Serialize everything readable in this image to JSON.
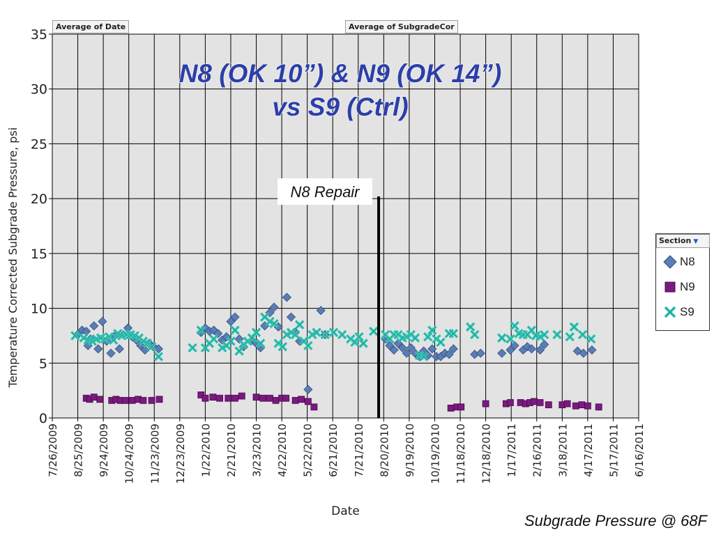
{
  "pivot_buttons": {
    "date_field": "Average of Date",
    "value_field": "Average of SubgradeCor"
  },
  "legend": {
    "title": "Section"
  },
  "annotation": "N8 Repair",
  "footer_note": "Subgrade Pressure @ 68F",
  "colors": {
    "N8": "#5b7db5",
    "N9": "#7a1a7e",
    "S9": "#3ccfbd",
    "plot_bg": "#e3e3e3"
  },
  "chart_data": {
    "type": "scatter",
    "title": "N8 (OK 10”) & N9 (OK 14”)",
    "subtitle": "vs S9 (Ctrl)",
    "xlabel": "Date",
    "ylabel": "Temperature Corrected Subgrade Pressure, psi",
    "x_scale": "date",
    "xlim": [
      "2009-07-26",
      "2011-06-16"
    ],
    "ylim": [
      0,
      35
    ],
    "yticks": [
      0,
      5,
      10,
      15,
      20,
      25,
      30,
      35
    ],
    "xtick_labels": [
      "7/26/2009",
      "8/25/2009",
      "9/24/2009",
      "10/24/2009",
      "11/23/2009",
      "12/23/2009",
      "1/22/2010",
      "2/21/2010",
      "3/23/2010",
      "4/22/2010",
      "5/22/2010",
      "6/21/2010",
      "7/21/2010",
      "8/20/2010",
      "9/19/2010",
      "10/19/2010",
      "11/18/2010",
      "12/18/2010",
      "1/17/2011",
      "2/16/2011",
      "3/18/2011",
      "4/17/2011",
      "5/17/2011",
      "6/16/2011"
    ],
    "grid": true,
    "legend_position": "right",
    "vline": {
      "x": "2010-08-14",
      "y_top": 20.2,
      "label": "N8 Repair"
    },
    "series": [
      {
        "name": "N8",
        "marker": "diamond",
        "points": [
          [
            "2009-08-25",
            7.6
          ],
          [
            "2009-08-30",
            8.0
          ],
          [
            "2009-09-04",
            7.9
          ],
          [
            "2009-09-06",
            6.6
          ],
          [
            "2009-09-09",
            7.2
          ],
          [
            "2009-09-13",
            8.4
          ],
          [
            "2009-09-18",
            6.3
          ],
          [
            "2009-09-23",
            8.8
          ],
          [
            "2009-09-28",
            7.0
          ],
          [
            "2009-10-03",
            5.9
          ],
          [
            "2009-10-08",
            7.5
          ],
          [
            "2009-10-13",
            6.3
          ],
          [
            "2009-10-18",
            7.6
          ],
          [
            "2009-10-23",
            8.2
          ],
          [
            "2009-10-28",
            7.4
          ],
          [
            "2009-11-02",
            7.1
          ],
          [
            "2009-11-07",
            6.6
          ],
          [
            "2009-11-12",
            6.2
          ],
          [
            "2009-11-17",
            6.8
          ],
          [
            "2009-11-22",
            6.5
          ],
          [
            "2009-11-28",
            6.3
          ],
          [
            "2010-01-17",
            7.8
          ],
          [
            "2010-01-22",
            8.2
          ],
          [
            "2010-01-27",
            7.9
          ],
          [
            "2010-02-01",
            8.0
          ],
          [
            "2010-02-06",
            7.7
          ],
          [
            "2010-02-11",
            7.1
          ],
          [
            "2010-02-16",
            7.4
          ],
          [
            "2010-02-21",
            8.8
          ],
          [
            "2010-02-26",
            9.2
          ],
          [
            "2010-03-03",
            7.2
          ],
          [
            "2010-03-08",
            6.5
          ],
          [
            "2010-03-18",
            7.1
          ],
          [
            "2010-03-23",
            6.8
          ],
          [
            "2010-03-28",
            6.4
          ],
          [
            "2010-04-02",
            8.4
          ],
          [
            "2010-04-08",
            9.6
          ],
          [
            "2010-04-13",
            10.1
          ],
          [
            "2010-04-18",
            8.3
          ],
          [
            "2010-04-28",
            11.0
          ],
          [
            "2010-05-03",
            9.2
          ],
          [
            "2010-05-08",
            7.8
          ],
          [
            "2010-05-13",
            7.0
          ],
          [
            "2010-05-23",
            2.6
          ],
          [
            "2010-06-07",
            9.8
          ],
          [
            "2010-06-12",
            7.6
          ],
          [
            "2010-08-22",
            7.2
          ],
          [
            "2010-08-27",
            6.6
          ],
          [
            "2010-09-01",
            6.2
          ],
          [
            "2010-09-06",
            6.8
          ],
          [
            "2010-09-11",
            6.4
          ],
          [
            "2010-09-16",
            5.9
          ],
          [
            "2010-09-21",
            6.4
          ],
          [
            "2010-09-26",
            5.9
          ],
          [
            "2010-10-01",
            5.6
          ],
          [
            "2010-10-06",
            6.1
          ],
          [
            "2010-10-11",
            5.7
          ],
          [
            "2010-10-16",
            6.3
          ],
          [
            "2010-10-21",
            5.6
          ],
          [
            "2010-10-26",
            5.6
          ],
          [
            "2010-10-31",
            5.9
          ],
          [
            "2010-11-05",
            5.8
          ],
          [
            "2010-11-10",
            6.3
          ],
          [
            "2010-12-05",
            5.8
          ],
          [
            "2010-12-12",
            5.9
          ],
          [
            "2011-01-06",
            5.9
          ],
          [
            "2011-01-16",
            6.2
          ],
          [
            "2011-01-21",
            6.6
          ],
          [
            "2011-01-31",
            6.2
          ],
          [
            "2011-02-05",
            6.5
          ],
          [
            "2011-02-10",
            6.3
          ],
          [
            "2011-02-20",
            6.2
          ],
          [
            "2011-02-25",
            6.7
          ],
          [
            "2011-04-05",
            6.1
          ],
          [
            "2011-04-12",
            5.9
          ],
          [
            "2011-04-22",
            6.2
          ]
        ]
      },
      {
        "name": "N9",
        "marker": "square",
        "points": [
          [
            "2009-09-04",
            1.8
          ],
          [
            "2009-09-08",
            1.7
          ],
          [
            "2009-09-13",
            1.9
          ],
          [
            "2009-09-20",
            1.7
          ],
          [
            "2009-10-04",
            1.6
          ],
          [
            "2009-10-09",
            1.7
          ],
          [
            "2009-10-14",
            1.6
          ],
          [
            "2009-10-20",
            1.6
          ],
          [
            "2009-10-28",
            1.6
          ],
          [
            "2009-11-04",
            1.7
          ],
          [
            "2009-11-10",
            1.6
          ],
          [
            "2009-11-20",
            1.6
          ],
          [
            "2009-11-29",
            1.7
          ],
          [
            "2010-01-17",
            2.1
          ],
          [
            "2010-01-22",
            1.8
          ],
          [
            "2010-01-31",
            1.9
          ],
          [
            "2010-02-08",
            1.8
          ],
          [
            "2010-02-18",
            1.8
          ],
          [
            "2010-02-26",
            1.8
          ],
          [
            "2010-03-06",
            2.0
          ],
          [
            "2010-03-23",
            1.9
          ],
          [
            "2010-03-31",
            1.8
          ],
          [
            "2010-04-08",
            1.8
          ],
          [
            "2010-04-15",
            1.6
          ],
          [
            "2010-04-22",
            1.8
          ],
          [
            "2010-04-27",
            1.8
          ],
          [
            "2010-05-08",
            1.6
          ],
          [
            "2010-05-15",
            1.7
          ],
          [
            "2010-05-23",
            1.5
          ],
          [
            "2010-05-30",
            1.0
          ],
          [
            "2010-11-07",
            0.9
          ],
          [
            "2010-11-14",
            1.0
          ],
          [
            "2010-11-19",
            1.0
          ],
          [
            "2010-12-18",
            1.3
          ],
          [
            "2011-01-11",
            1.3
          ],
          [
            "2011-01-16",
            1.4
          ],
          [
            "2011-01-28",
            1.4
          ],
          [
            "2011-02-03",
            1.3
          ],
          [
            "2011-02-08",
            1.4
          ],
          [
            "2011-02-13",
            1.5
          ],
          [
            "2011-02-20",
            1.4
          ],
          [
            "2011-03-02",
            1.2
          ],
          [
            "2011-03-18",
            1.2
          ],
          [
            "2011-03-24",
            1.3
          ],
          [
            "2011-04-03",
            1.1
          ],
          [
            "2011-04-10",
            1.2
          ],
          [
            "2011-04-17",
            1.1
          ],
          [
            "2011-04-30",
            1.0
          ]
        ]
      },
      {
        "name": "S9",
        "marker": "x",
        "points": [
          [
            "2009-08-22",
            7.5
          ],
          [
            "2009-09-01",
            7.3
          ],
          [
            "2009-09-06",
            7.1
          ],
          [
            "2009-09-11",
            7.0
          ],
          [
            "2009-09-16",
            7.2
          ],
          [
            "2009-09-21",
            7.3
          ],
          [
            "2009-09-26",
            7.2
          ],
          [
            "2009-10-01",
            7.4
          ],
          [
            "2009-10-06",
            7.1
          ],
          [
            "2009-10-11",
            7.7
          ],
          [
            "2009-10-16",
            7.5
          ],
          [
            "2009-10-21",
            7.6
          ],
          [
            "2009-10-26",
            7.6
          ],
          [
            "2009-10-31",
            7.5
          ],
          [
            "2009-11-05",
            7.3
          ],
          [
            "2009-11-10",
            7.0
          ],
          [
            "2009-11-15",
            6.8
          ],
          [
            "2009-11-20",
            6.5
          ],
          [
            "2009-11-28",
            5.6
          ],
          [
            "2010-01-07",
            6.4
          ],
          [
            "2010-01-17",
            8.0
          ],
          [
            "2010-01-22",
            6.4
          ],
          [
            "2010-01-27",
            6.8
          ],
          [
            "2010-02-01",
            7.2
          ],
          [
            "2010-02-11",
            6.4
          ],
          [
            "2010-02-16",
            6.6
          ],
          [
            "2010-02-21",
            7.0
          ],
          [
            "2010-02-26",
            8.0
          ],
          [
            "2010-03-03",
            6.1
          ],
          [
            "2010-03-08",
            6.7
          ],
          [
            "2010-03-13",
            7.0
          ],
          [
            "2010-03-18",
            7.3
          ],
          [
            "2010-03-23",
            7.8
          ],
          [
            "2010-03-28",
            6.8
          ],
          [
            "2010-04-02",
            9.2
          ],
          [
            "2010-04-08",
            8.8
          ],
          [
            "2010-04-13",
            8.6
          ],
          [
            "2010-04-18",
            6.8
          ],
          [
            "2010-04-23",
            6.5
          ],
          [
            "2010-04-28",
            7.6
          ],
          [
            "2010-05-03",
            7.8
          ],
          [
            "2010-05-08",
            7.6
          ],
          [
            "2010-05-13",
            8.5
          ],
          [
            "2010-05-18",
            7.0
          ],
          [
            "2010-05-23",
            6.6
          ],
          [
            "2010-05-28",
            7.6
          ],
          [
            "2010-06-02",
            7.8
          ],
          [
            "2010-06-12",
            7.6
          ],
          [
            "2010-06-22",
            7.8
          ],
          [
            "2010-07-02",
            7.6
          ],
          [
            "2010-07-12",
            7.2
          ],
          [
            "2010-07-17",
            6.9
          ],
          [
            "2010-07-22",
            7.4
          ],
          [
            "2010-07-27",
            6.8
          ],
          [
            "2010-08-08",
            7.9
          ],
          [
            "2010-08-22",
            7.6
          ],
          [
            "2010-08-27",
            7.2
          ],
          [
            "2010-09-01",
            7.6
          ],
          [
            "2010-09-06",
            7.6
          ],
          [
            "2010-09-11",
            7.3
          ],
          [
            "2010-09-16",
            7.4
          ],
          [
            "2010-09-21",
            7.6
          ],
          [
            "2010-09-26",
            7.3
          ],
          [
            "2010-10-01",
            5.7
          ],
          [
            "2010-10-06",
            5.6
          ],
          [
            "2010-10-11",
            7.4
          ],
          [
            "2010-10-16",
            8.0
          ],
          [
            "2010-10-21",
            7.2
          ],
          [
            "2010-10-26",
            6.9
          ],
          [
            "2010-11-05",
            7.7
          ],
          [
            "2010-11-10",
            7.7
          ],
          [
            "2010-11-30",
            8.3
          ],
          [
            "2010-12-05",
            7.6
          ],
          [
            "2011-01-06",
            7.3
          ],
          [
            "2011-01-16",
            7.2
          ],
          [
            "2011-01-21",
            8.4
          ],
          [
            "2011-01-26",
            7.7
          ],
          [
            "2011-01-31",
            7.6
          ],
          [
            "2011-02-05",
            7.6
          ],
          [
            "2011-02-10",
            8.0
          ],
          [
            "2011-02-15",
            7.5
          ],
          [
            "2011-02-20",
            7.4
          ],
          [
            "2011-02-25",
            7.6
          ],
          [
            "2011-03-12",
            7.6
          ],
          [
            "2011-03-27",
            7.4
          ],
          [
            "2011-04-01",
            8.3
          ],
          [
            "2011-04-11",
            7.6
          ],
          [
            "2011-04-21",
            7.2
          ]
        ]
      }
    ]
  }
}
